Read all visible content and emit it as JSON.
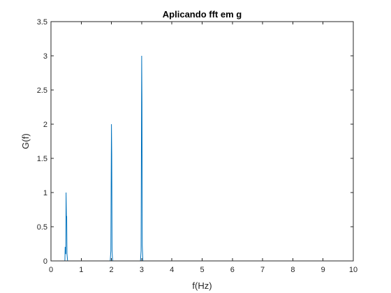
{
  "chart_data": {
    "type": "line",
    "title": "Aplicando fft em g",
    "xlabel": "f(Hz)",
    "ylabel": "G(f)",
    "xlim": [
      0,
      10
    ],
    "ylim": [
      0,
      3.5
    ],
    "xticks": [
      0,
      1,
      2,
      3,
      4,
      5,
      6,
      7,
      8,
      9,
      10
    ],
    "yticks": [
      0,
      0.5,
      1,
      1.5,
      2,
      2.5,
      3,
      3.5
    ],
    "xtick_labels": [
      "0",
      "1",
      "2",
      "3",
      "4",
      "5",
      "6",
      "7",
      "8",
      "9",
      "10"
    ],
    "ytick_labels": [
      "0",
      "0.5",
      "1",
      "1.5",
      "2",
      "2.5",
      "3",
      "3.5"
    ],
    "grid": false,
    "box": true,
    "series": [
      {
        "color": "#0072bd",
        "x": [
          0,
          0.46,
          0.47,
          0.48,
          0.49,
          0.5,
          0.51,
          0.52,
          0.53,
          0.54,
          0.55,
          1.94,
          1.96,
          1.98,
          2.0,
          2.01,
          2.02,
          2.04,
          2.06,
          2.94,
          2.96,
          2.98,
          3.0,
          3.01,
          3.02,
          3.04,
          3.06,
          10
        ],
        "y": [
          0,
          0,
          0.2,
          0.2,
          0.1,
          1.0,
          0.65,
          0.65,
          0.1,
          0.05,
          0,
          0,
          0,
          0.15,
          2.0,
          1.55,
          0.15,
          0,
          0,
          0,
          0,
          0.15,
          3.0,
          2.32,
          0.22,
          0,
          0,
          0
        ]
      }
    ]
  }
}
